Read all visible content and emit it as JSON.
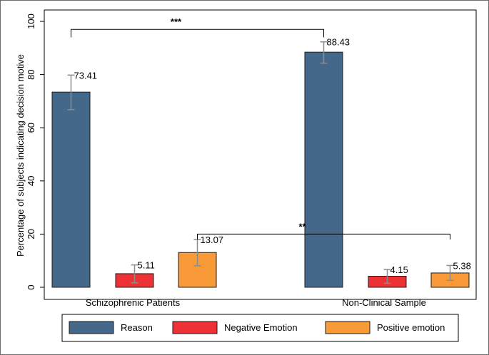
{
  "chart_data": {
    "type": "bar",
    "title": "",
    "xlabel": "",
    "ylabel": "Percentage of subjects indicating decision motive",
    "ylim": [
      0,
      100
    ],
    "yticks": [
      0,
      20,
      40,
      60,
      80,
      100
    ],
    "grid": false,
    "legend_position": "bottom",
    "categories": [
      "Schizophrenic Patients",
      "Non-Clinical Sample"
    ],
    "series": [
      {
        "name": "Reason",
        "color": "#44688a",
        "values": [
          73.41,
          88.43
        ],
        "labels": [
          "73.41",
          "88.43"
        ],
        "ci": [
          [
            66.8,
            79.8
          ],
          [
            84.3,
            92.3
          ]
        ]
      },
      {
        "name": "Negative Emotion",
        "color": "#ee3134",
        "values": [
          5.11,
          4.15
        ],
        "labels": [
          "5.11",
          "4.15"
        ],
        "ci": [
          [
            1.7,
            8.4
          ],
          [
            1.5,
            6.7
          ]
        ]
      },
      {
        "name": "Positive emotion",
        "color": "#f99a38",
        "values": [
          13.07,
          5.38
        ],
        "labels": [
          "13.07",
          "5.38"
        ],
        "ci": [
          [
            8.1,
            18.0
          ],
          [
            2.6,
            8.2
          ]
        ]
      }
    ],
    "annotations": [
      {
        "text": "***",
        "from": "Schizophrenic Patients / Reason",
        "to": "Non-Clinical Sample / Reason",
        "level": 97,
        "drop_to": 94
      },
      {
        "text": "**",
        "from": "Schizophrenic Patients / Positive emotion",
        "to": "Non-Clinical Sample / Positive emotion",
        "level": 20,
        "drop_to": 18
      }
    ]
  }
}
